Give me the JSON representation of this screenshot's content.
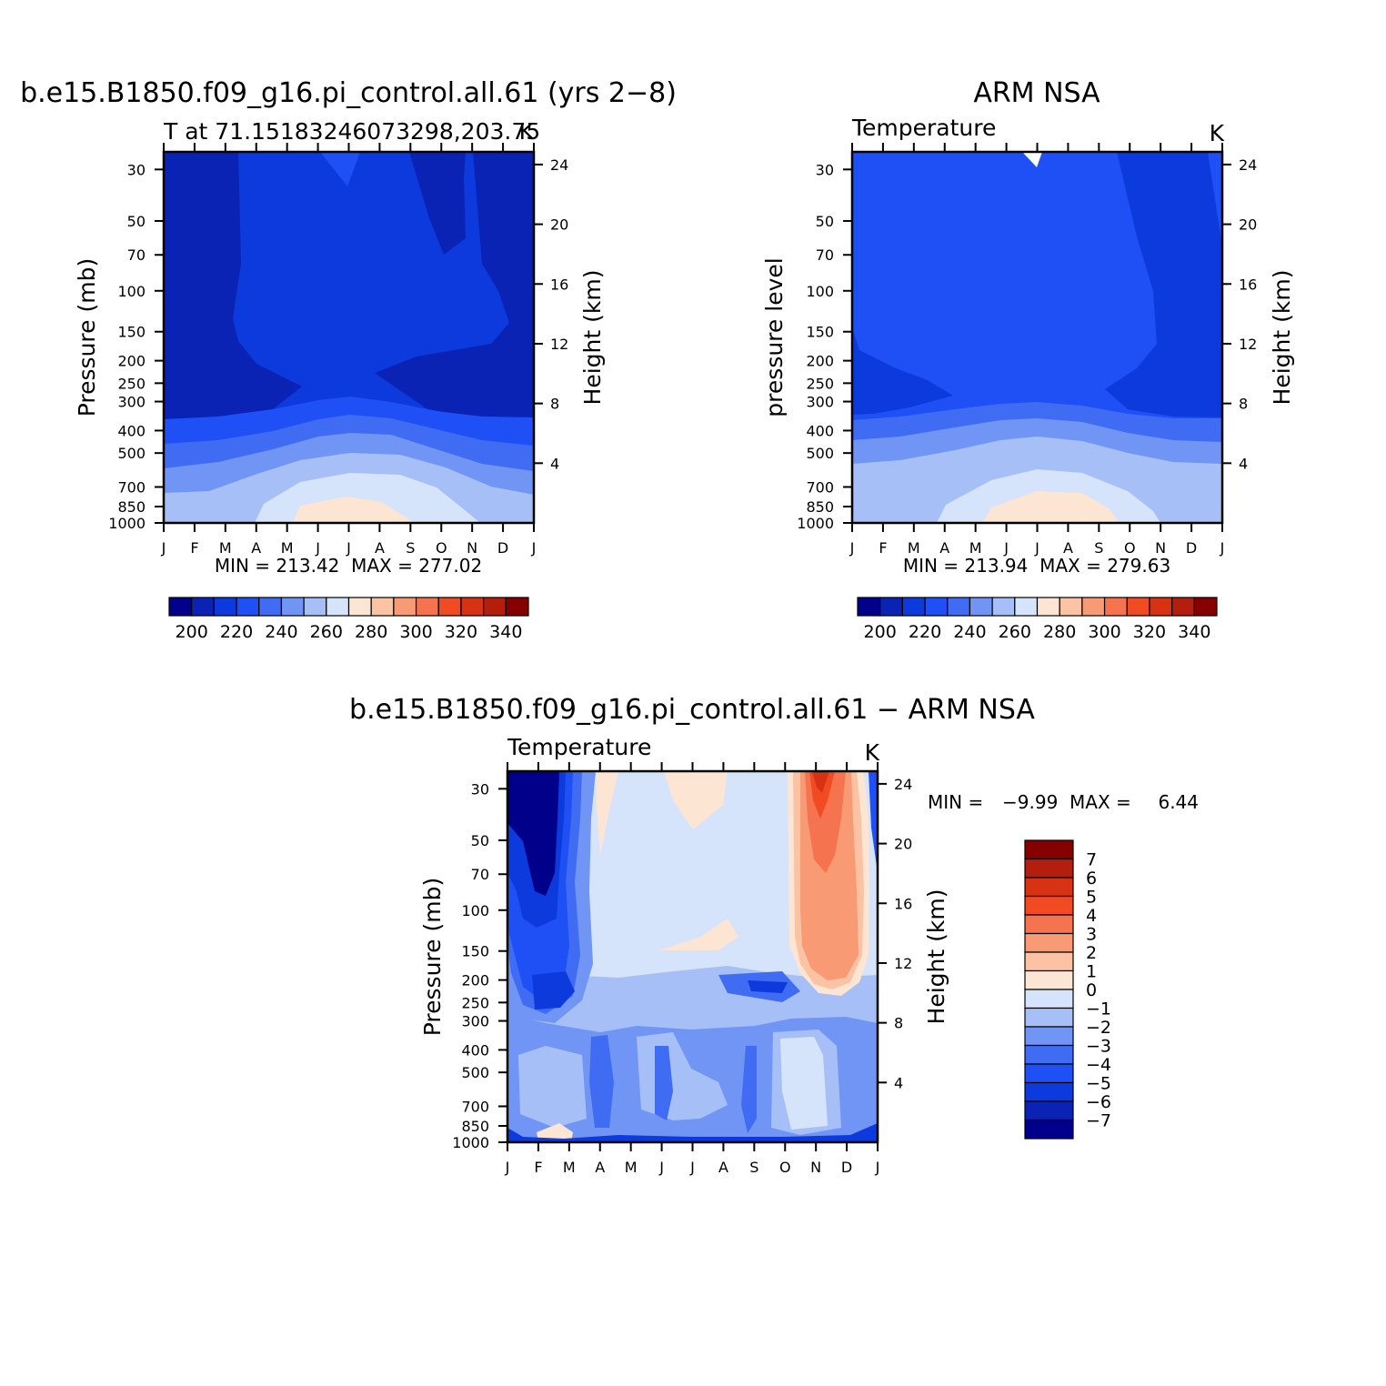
{
  "chart_data": [
    {
      "type": "heatmap",
      "title": "b.e15.B1850.f09_g16.pi_control.all.61 (yrs 2−8)",
      "left_string": "T at 71.15183246073298,203.75",
      "right_string": "K",
      "ylabel": "Pressure (mb)",
      "ylabel_right": "Height (km)",
      "x_ticks": [
        "J",
        "F",
        "M",
        "A",
        "M",
        "J",
        "J",
        "A",
        "S",
        "O",
        "N",
        "D",
        "J"
      ],
      "y_ticks": [
        "30",
        "50",
        "70",
        "100",
        "150",
        "200",
        "250",
        "300",
        "400",
        "500",
        "700",
        "850",
        "1000"
      ],
      "y_ticks_right": [
        "24",
        "20",
        "16",
        "12",
        "8",
        "4"
      ],
      "stats_text": "MIN = 213.42  MAX = 277.02",
      "levels": [
        200,
        210,
        220,
        230,
        240,
        250,
        260,
        270,
        280,
        290,
        300,
        310,
        320,
        330,
        340,
        350
      ],
      "colorbar_labels": [
        "200",
        "220",
        "240",
        "260",
        "280",
        "300",
        "320",
        "340"
      ],
      "approx_profile_by_level": {
        "pressure_mb": [
          30,
          50,
          70,
          100,
          150,
          200,
          250,
          300,
          400,
          500,
          700,
          850,
          1000
        ],
        "Jan": [
          222,
          221,
          221,
          221,
          219,
          217,
          216,
          218,
          232,
          242,
          251,
          258,
          260
        ],
        "Jul": [
          228,
          228,
          227,
          226,
          225,
          223,
          222,
          225,
          238,
          249,
          262,
          270,
          274
        ]
      }
    },
    {
      "type": "heatmap",
      "title": "ARM NSA",
      "left_string": "Temperature",
      "right_string": "K",
      "ylabel": "pressure level",
      "ylabel_right": "Height (km)",
      "x_ticks": [
        "J",
        "F",
        "M",
        "A",
        "M",
        "J",
        "J",
        "A",
        "S",
        "O",
        "N",
        "D",
        "J"
      ],
      "y_ticks": [
        "30",
        "50",
        "70",
        "100",
        "150",
        "200",
        "250",
        "300",
        "400",
        "500",
        "700",
        "850",
        "1000"
      ],
      "y_ticks_right": [
        "24",
        "20",
        "16",
        "12",
        "8",
        "4"
      ],
      "stats_text": "MIN = 213.94  MAX = 279.63",
      "levels": [
        200,
        210,
        220,
        230,
        240,
        250,
        260,
        270,
        280,
        290,
        300,
        310,
        320,
        330,
        340,
        350
      ],
      "colorbar_labels": [
        "200",
        "220",
        "240",
        "260",
        "280",
        "300",
        "320",
        "340"
      ]
    },
    {
      "type": "heatmap",
      "title": "b.e15.B1850.f09_g16.pi_control.all.61 − ARM NSA",
      "left_string": "Temperature",
      "right_string": "K",
      "ylabel": "Pressure (mb)",
      "ylabel_right": "Height (km)",
      "x_ticks": [
        "J",
        "F",
        "M",
        "A",
        "M",
        "J",
        "J",
        "A",
        "S",
        "O",
        "N",
        "D",
        "J"
      ],
      "y_ticks": [
        "30",
        "50",
        "70",
        "100",
        "150",
        "200",
        "250",
        "300",
        "400",
        "500",
        "700",
        "850",
        "1000"
      ],
      "y_ticks_right": [
        "24",
        "20",
        "16",
        "12",
        "8",
        "4"
      ],
      "stats_min_label": "MIN =",
      "stats_min_value": "−9.99",
      "stats_max_label": "MAX =",
      "stats_max_value": "6.44",
      "levels": [
        -8,
        -7,
        -6,
        -5,
        -4,
        -3,
        -2,
        -1,
        0,
        1,
        2,
        3,
        4,
        5,
        6,
        7,
        8
      ],
      "colorbar_labels": [
        "7",
        "6",
        "5",
        "4",
        "3",
        "2",
        "1",
        "0",
        "−1",
        "−2",
        "−3",
        "−4",
        "−5",
        "−6",
        "−7"
      ]
    }
  ],
  "colors": {
    "temperature_scale": [
      "#00008a",
      "#0a23b4",
      "#0c3adc",
      "#1e50f5",
      "#3f6cf3",
      "#7195f4",
      "#a6bff7",
      "#d5e4fb",
      "#fde5d4",
      "#fbc3a4",
      "#f89a74",
      "#f5734e",
      "#f14b24",
      "#d83214",
      "#b41e0c",
      "#870000"
    ],
    "difference_scale": [
      "#00008a",
      "#0a23b4",
      "#0c3adc",
      "#1e50f5",
      "#3f6cf3",
      "#7195f4",
      "#a6bff7",
      "#d5e4fb",
      "#fde5d4",
      "#fbc3a4",
      "#f89a74",
      "#f5734e",
      "#f14b24",
      "#d83214",
      "#b41e0c",
      "#870000"
    ]
  }
}
